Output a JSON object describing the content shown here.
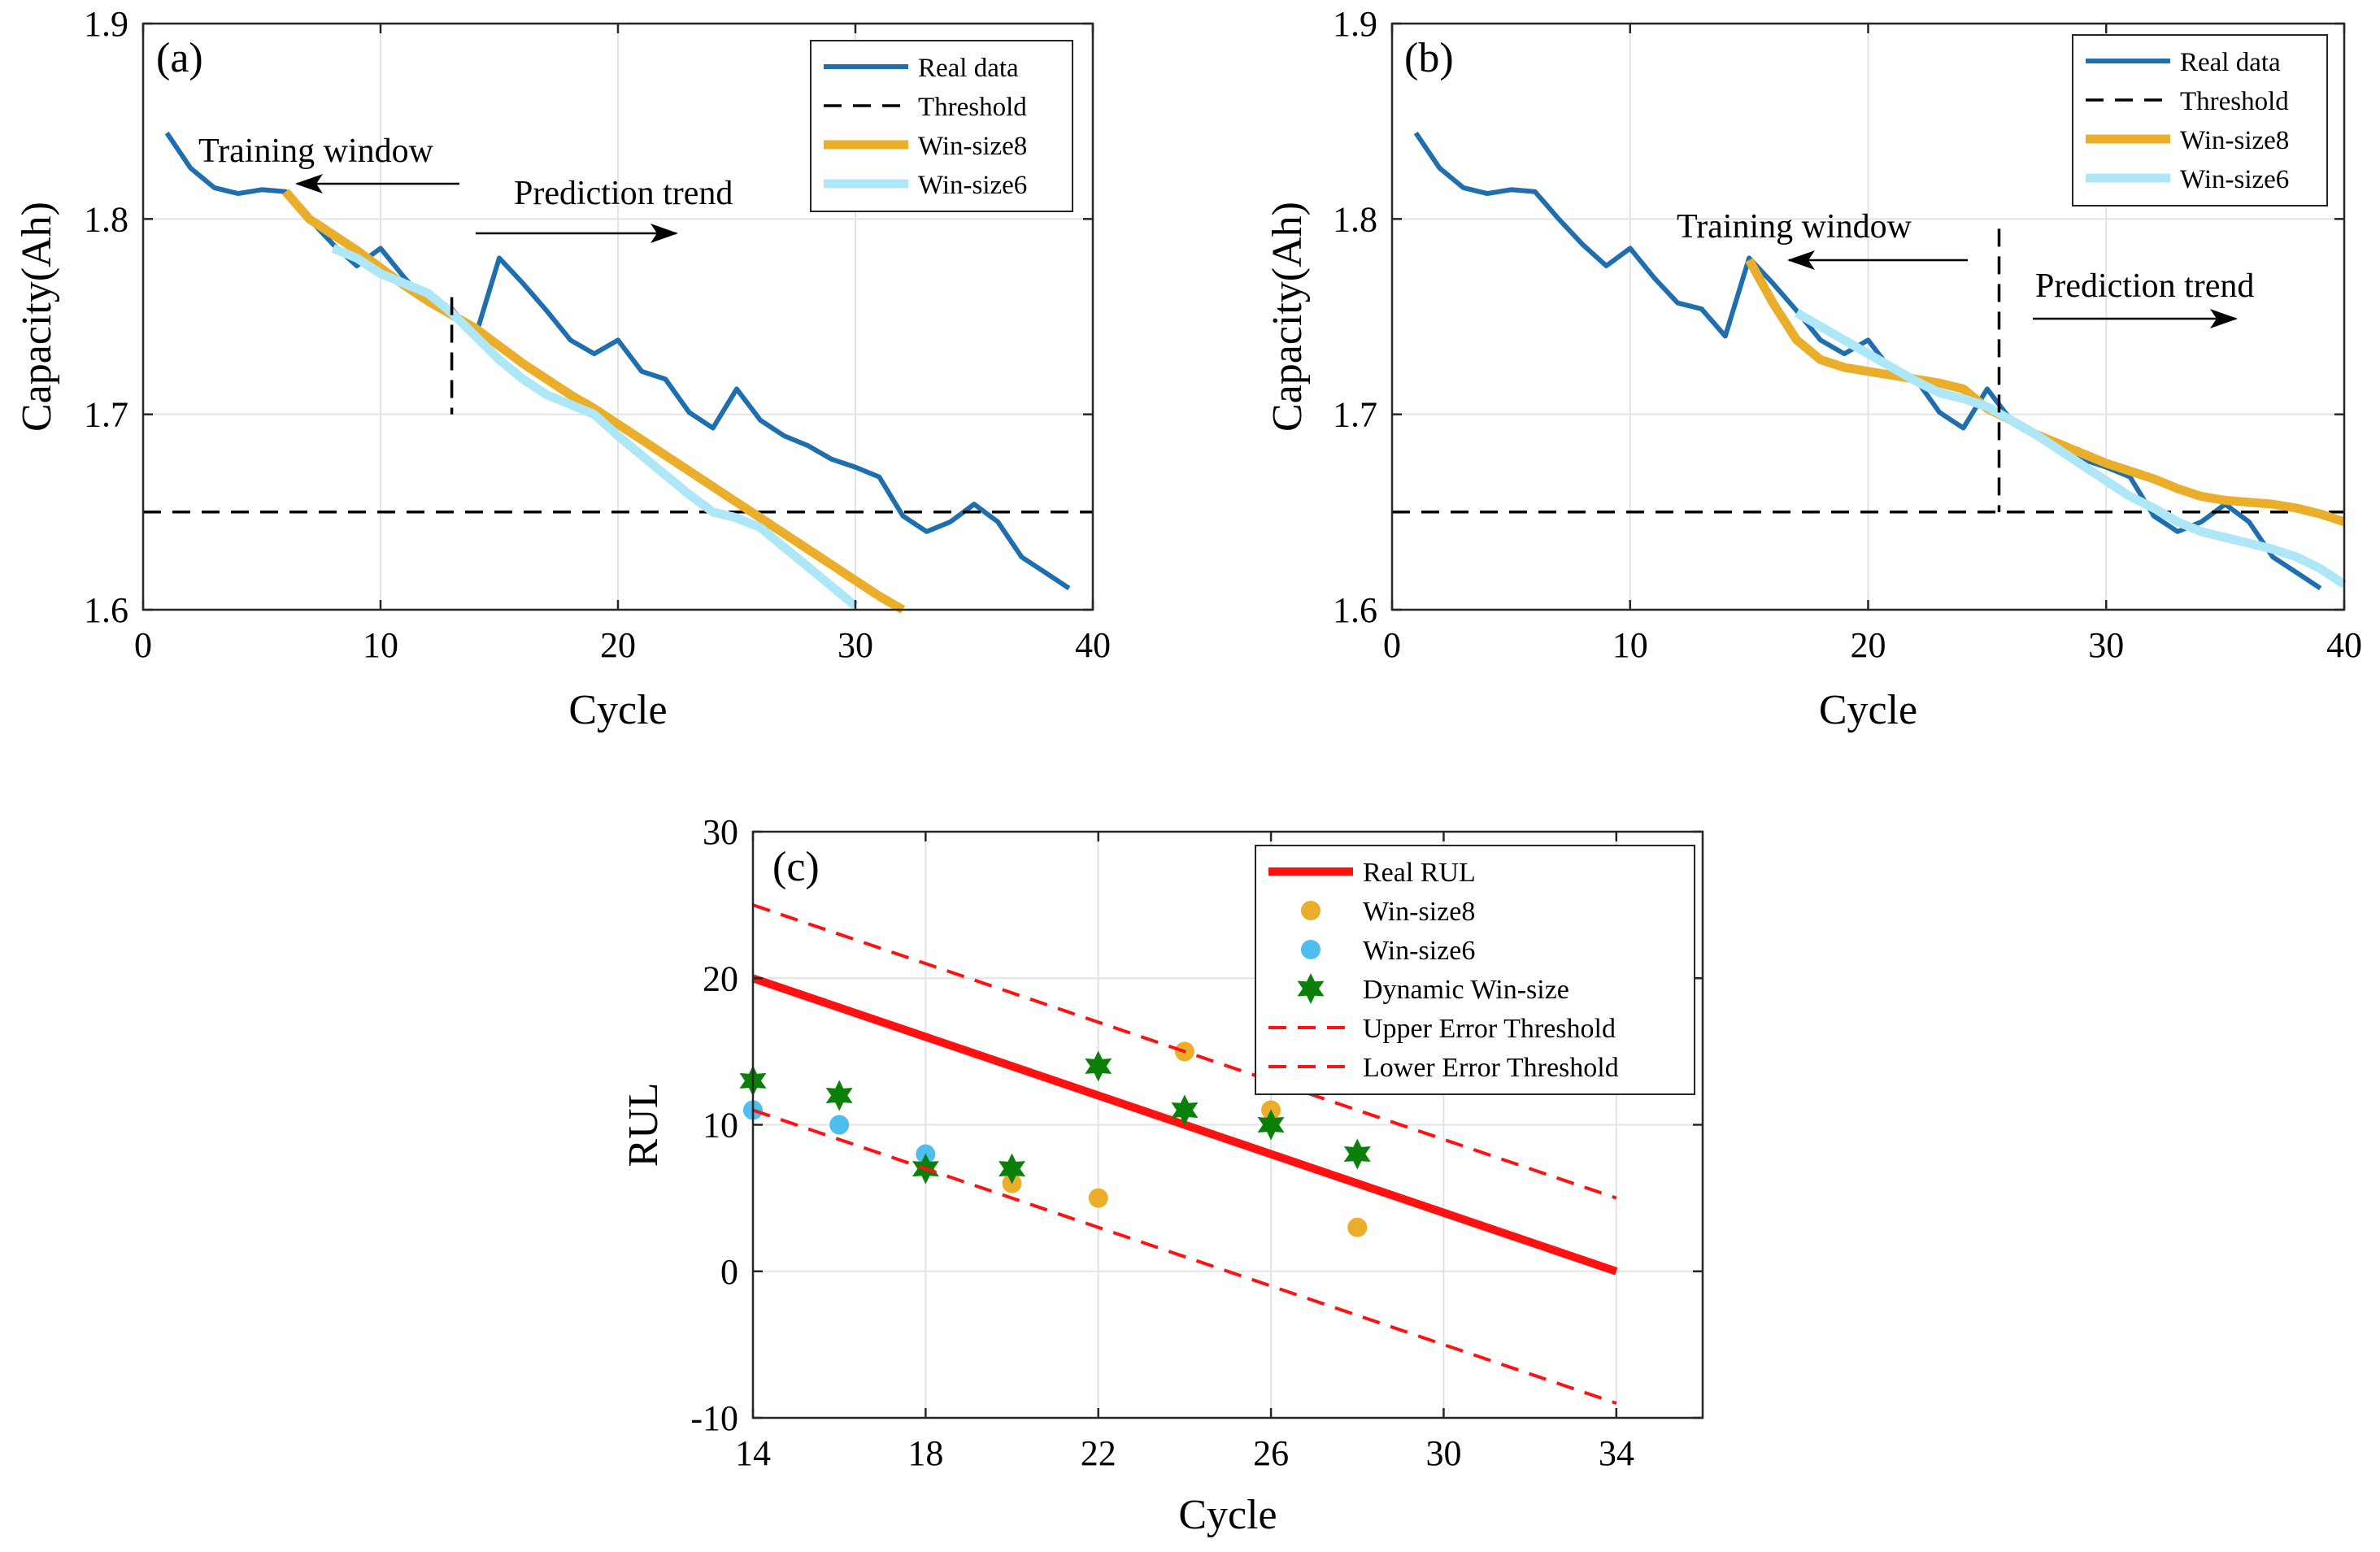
{
  "figure": {
    "panel_a_label": "(a)",
    "panel_b_label": "(b)",
    "panel_c_label": "(c)"
  },
  "colors": {
    "real": "#1f6faf",
    "win8": "#eaae2b",
    "win6": "#aee7f8",
    "win6_point": "#4dbeee",
    "dyn": "#0a800a",
    "real_rul": "#ff1111",
    "thresh": "#000000"
  },
  "chart_data": [
    {
      "id": "a",
      "type": "line",
      "label": "(a)",
      "xlabel": "Cycle",
      "ylabel": "Capacity(Ah)",
      "xlim": [
        0,
        40
      ],
      "ylim": [
        1.6,
        1.9
      ],
      "xticks": [
        0,
        10,
        20,
        30,
        40
      ],
      "yticks": [
        1.6,
        1.7,
        1.8,
        1.9
      ],
      "grid": true,
      "legend_position": "top-right",
      "threshold": 1.65,
      "split_cycle": 13,
      "annotations": {
        "training": "Training window",
        "prediction": "Prediction trend"
      },
      "series": [
        {
          "name": "Real data",
          "style": "real",
          "x": [
            1,
            2,
            3,
            4,
            5,
            6,
            7,
            8,
            9,
            10,
            11,
            12,
            13,
            14,
            15,
            16,
            17,
            18,
            19,
            20,
            21,
            22,
            23,
            24,
            25,
            26,
            27,
            28,
            29,
            30,
            31,
            32,
            33,
            34,
            35,
            36,
            37,
            38,
            39
          ],
          "y": [
            1.844,
            1.826,
            1.816,
            1.813,
            1.815,
            1.814,
            1.8,
            1.787,
            1.776,
            1.785,
            1.77,
            1.757,
            1.754,
            1.74,
            1.78,
            1.767,
            1.753,
            1.738,
            1.731,
            1.738,
            1.722,
            1.718,
            1.701,
            1.693,
            1.713,
            1.697,
            1.689,
            1.684,
            1.677,
            1.673,
            1.668,
            1.648,
            1.64,
            1.645,
            1.654,
            1.645,
            1.627,
            1.619,
            1.611
          ]
        },
        {
          "name": "Threshold",
          "style": "threshold",
          "x": [
            0,
            40
          ],
          "y": [
            1.65,
            1.65
          ]
        },
        {
          "name": "Win-size8",
          "style": "win8",
          "x": [
            6,
            7,
            8,
            9,
            10,
            11,
            12,
            13,
            14,
            15,
            16,
            17,
            18,
            19,
            20,
            21,
            22,
            23,
            24,
            25,
            26,
            27,
            28,
            29,
            30,
            31,
            32
          ],
          "y": [
            1.814,
            1.8,
            1.792,
            1.784,
            1.775,
            1.766,
            1.758,
            1.751,
            1.744,
            1.735,
            1.726,
            1.718,
            1.71,
            1.703,
            1.695,
            1.687,
            1.679,
            1.671,
            1.663,
            1.655,
            1.647,
            1.639,
            1.631,
            1.623,
            1.615,
            1.607,
            1.6
          ]
        },
        {
          "name": "Win-size6",
          "style": "win6",
          "x": [
            8,
            9,
            10,
            11,
            12,
            13,
            14,
            15,
            16,
            17,
            18,
            19,
            20,
            21,
            22,
            23,
            24,
            25,
            26,
            27,
            28,
            29,
            30
          ],
          "y": [
            1.785,
            1.78,
            1.772,
            1.767,
            1.762,
            1.752,
            1.74,
            1.728,
            1.718,
            1.71,
            1.705,
            1.7,
            1.689,
            1.679,
            1.669,
            1.659,
            1.65,
            1.647,
            1.642,
            1.632,
            1.622,
            1.612,
            1.602
          ]
        }
      ]
    },
    {
      "id": "b",
      "type": "line",
      "label": "(b)",
      "xlabel": "Cycle",
      "ylabel": "Capacity(Ah)",
      "xlim": [
        0,
        40
      ],
      "ylim": [
        1.6,
        1.9
      ],
      "xticks": [
        0,
        10,
        20,
        30,
        40
      ],
      "yticks": [
        1.6,
        1.7,
        1.8,
        1.9
      ],
      "grid": true,
      "legend_position": "top-right",
      "threshold": 1.65,
      "split_cycle": 25.5,
      "annotations": {
        "training": "Training window",
        "prediction": "Prediction trend"
      },
      "series": [
        {
          "name": "Real data",
          "style": "real",
          "x": [
            1,
            2,
            3,
            4,
            5,
            6,
            7,
            8,
            9,
            10,
            11,
            12,
            13,
            14,
            15,
            16,
            17,
            18,
            19,
            20,
            21,
            22,
            23,
            24,
            25,
            26,
            27,
            28,
            29,
            30,
            31,
            32,
            33,
            34,
            35,
            36,
            37,
            38,
            39
          ],
          "y": [
            1.844,
            1.826,
            1.816,
            1.813,
            1.815,
            1.814,
            1.8,
            1.787,
            1.776,
            1.785,
            1.77,
            1.757,
            1.754,
            1.74,
            1.78,
            1.767,
            1.753,
            1.738,
            1.731,
            1.738,
            1.722,
            1.718,
            1.701,
            1.693,
            1.713,
            1.697,
            1.689,
            1.684,
            1.677,
            1.673,
            1.668,
            1.648,
            1.64,
            1.645,
            1.654,
            1.645,
            1.627,
            1.619,
            1.611
          ]
        },
        {
          "name": "Threshold",
          "style": "threshold",
          "x": [
            0,
            40
          ],
          "y": [
            1.65,
            1.65
          ]
        },
        {
          "name": "Win-size8",
          "style": "win8",
          "x": [
            15,
            16,
            17,
            18,
            19,
            20,
            21,
            22,
            23,
            24,
            25,
            26,
            27,
            28,
            29,
            30,
            31,
            32,
            33,
            34,
            35,
            36,
            37,
            38,
            39,
            40
          ],
          "y": [
            1.779,
            1.757,
            1.738,
            1.728,
            1.724,
            1.722,
            1.72,
            1.718,
            1.716,
            1.713,
            1.703,
            1.697,
            1.69,
            1.685,
            1.68,
            1.675,
            1.671,
            1.667,
            1.662,
            1.658,
            1.656,
            1.655,
            1.654,
            1.652,
            1.649,
            1.645
          ]
        },
        {
          "name": "Win-size6",
          "style": "win6",
          "x": [
            17,
            18,
            19,
            20,
            21,
            22,
            23,
            24,
            25,
            26,
            27,
            28,
            29,
            30,
            31,
            32,
            33,
            34,
            35,
            36,
            37,
            38,
            39,
            40
          ],
          "y": [
            1.752,
            1.745,
            1.738,
            1.731,
            1.724,
            1.717,
            1.711,
            1.708,
            1.704,
            1.697,
            1.69,
            1.682,
            1.674,
            1.666,
            1.658,
            1.652,
            1.645,
            1.64,
            1.637,
            1.634,
            1.631,
            1.627,
            1.621,
            1.613
          ]
        }
      ]
    },
    {
      "id": "c",
      "type": "scatter",
      "label": "(c)",
      "xlabel": "Cycle",
      "ylabel": "RUL",
      "xlim": [
        14,
        36
      ],
      "ylim": [
        -10,
        30
      ],
      "xticks": [
        14,
        18,
        22,
        26,
        30,
        34
      ],
      "yticks": [
        -10,
        0,
        10,
        20,
        30
      ],
      "grid": true,
      "legend_position": "top-right",
      "series": [
        {
          "name": "Real RUL",
          "style": "real_rul",
          "x": [
            14,
            34
          ],
          "y": [
            20,
            0
          ]
        },
        {
          "name": "Win-size8",
          "style": "win8_pt",
          "x": [
            20,
            22,
            24,
            26,
            28
          ],
          "y": [
            6,
            5,
            15,
            11,
            3
          ]
        },
        {
          "name": "Win-size6",
          "style": "win6_pt",
          "x": [
            14,
            16,
            18
          ],
          "y": [
            11,
            10,
            8
          ]
        },
        {
          "name": "Dynamic Win-size",
          "style": "dyn_pt",
          "x": [
            14,
            16,
            18,
            20,
            22,
            24,
            26,
            28
          ],
          "y": [
            13,
            12,
            7,
            7,
            14,
            11,
            10,
            8
          ]
        },
        {
          "name": "Upper Error Threshold",
          "style": "err",
          "x": [
            14,
            34
          ],
          "y": [
            25,
            5
          ]
        },
        {
          "name": "Lower Error Threshold",
          "style": "err",
          "x": [
            14,
            34
          ],
          "y": [
            11,
            -9
          ]
        }
      ]
    }
  ]
}
